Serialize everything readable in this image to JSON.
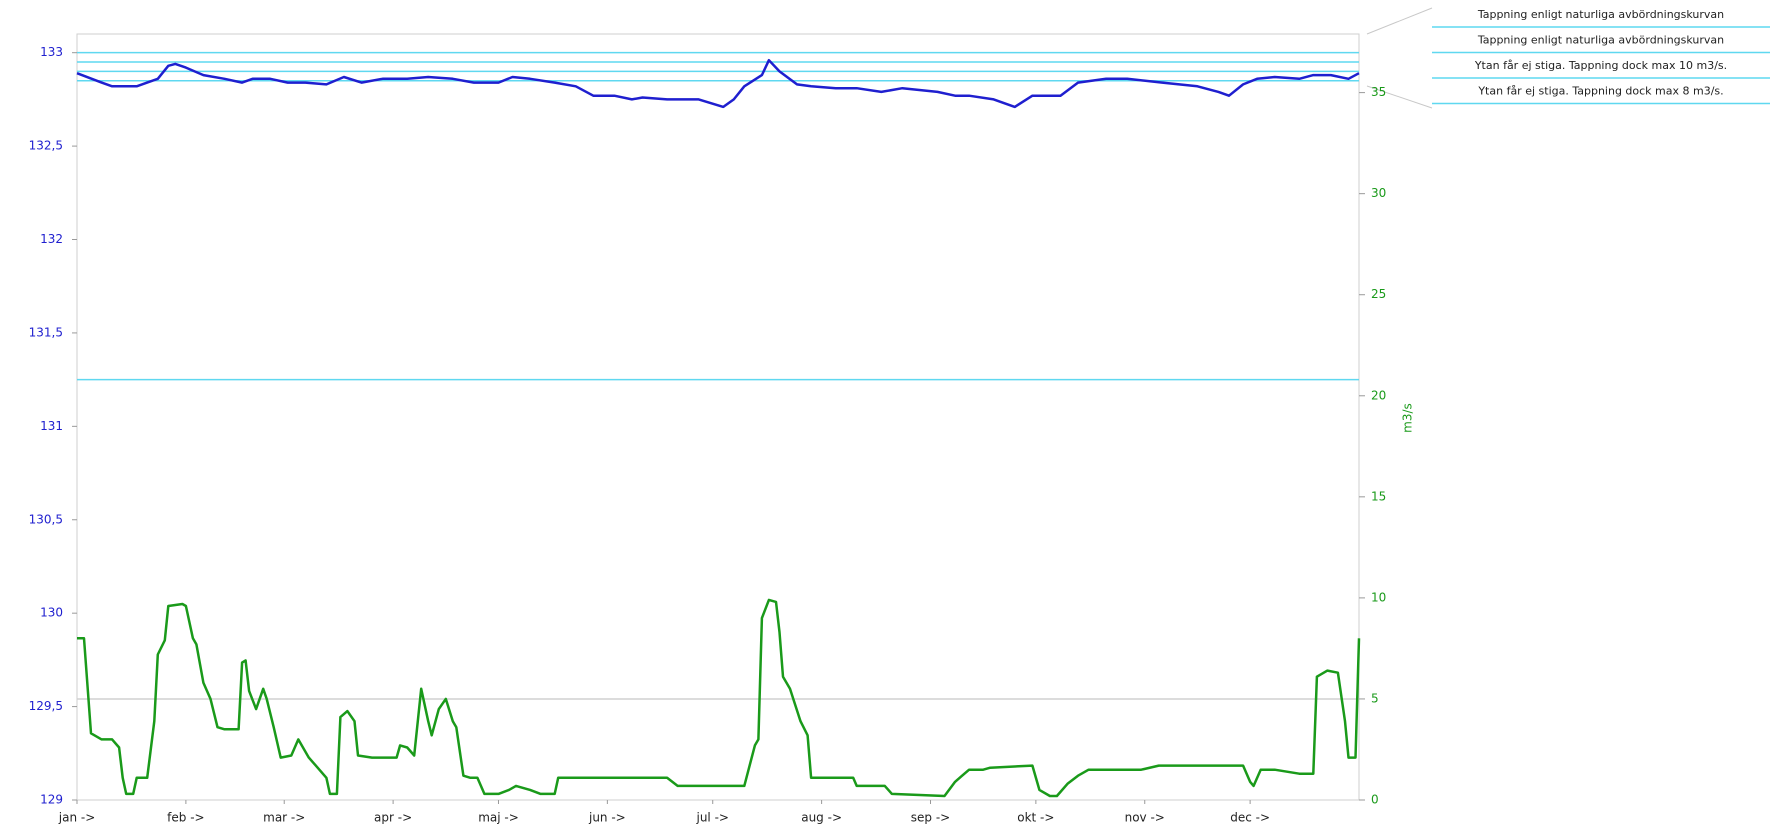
{
  "chart_data": {
    "type": "line",
    "xlim": [
      0,
      365
    ],
    "xticks": [
      {
        "value": 0,
        "label": "jan ->"
      },
      {
        "value": 31,
        "label": "feb ->"
      },
      {
        "value": 59,
        "label": "mar ->"
      },
      {
        "value": 90,
        "label": "apr ->"
      },
      {
        "value": 120,
        "label": "maj ->"
      },
      {
        "value": 151,
        "label": "jun ->"
      },
      {
        "value": 181,
        "label": "jul ->"
      },
      {
        "value": 212,
        "label": "aug ->"
      },
      {
        "value": 243,
        "label": "sep ->"
      },
      {
        "value": 273,
        "label": "okt ->"
      },
      {
        "value": 304,
        "label": "nov ->"
      },
      {
        "value": 334,
        "label": "dec ->"
      }
    ],
    "ylim": [
      129,
      133.1
    ],
    "yticks": [
      129,
      {
        "value": 129.5,
        "label": "129,5"
      },
      130,
      {
        "value": 130.5,
        "label": "130,5"
      },
      131,
      {
        "value": 131.5,
        "label": "131,5"
      },
      132,
      {
        "value": 132.5,
        "label": "132,5"
      },
      133
    ],
    "y2lim": [
      0,
      37.9
    ],
    "y2ticks": [
      0,
      5,
      10,
      15,
      20,
      25,
      30,
      35
    ],
    "y2label": "m3/s",
    "levels": [
      133,
      132.95,
      132.9,
      132.85,
      131.25
    ],
    "level_color": "#5fd8f0",
    "y2_reference": 5,
    "legend": [
      "Tappning enligt naturliga avbördningskurvan",
      "Tappning enligt naturliga avbördningskurvan",
      "Ytan får ej stiga. Tappning dock max 10 m3/s.",
      "Ytan får ej stiga. Tappning dock max 8 m3/s."
    ],
    "series": [
      {
        "color": "#1f1fcf",
        "x": [
          0,
          7,
          10,
          17,
          20,
          23,
          26,
          28,
          31,
          36,
          42,
          47,
          50,
          55,
          60,
          65,
          71,
          76,
          81,
          87,
          94,
          100,
          107,
          113,
          120,
          124,
          129,
          136,
          142,
          147,
          153,
          158,
          161,
          168,
          177,
          184,
          187,
          190,
          195,
          197,
          200,
          205,
          209,
          216,
          222,
          229,
          235,
          245,
          250,
          254,
          261,
          267,
          272,
          280,
          285,
          293,
          299,
          309,
          319,
          325,
          328,
          332,
          336,
          341,
          348,
          352,
          357,
          362,
          365
        ],
        "values": [
          132.89,
          132.84,
          132.82,
          132.82,
          132.84,
          132.86,
          132.93,
          132.94,
          132.92,
          132.88,
          132.86,
          132.84,
          132.86,
          132.86,
          132.84,
          132.84,
          132.83,
          132.87,
          132.84,
          132.86,
          132.86,
          132.87,
          132.86,
          132.84,
          132.84,
          132.87,
          132.86,
          132.84,
          132.82,
          132.77,
          132.77,
          132.75,
          132.76,
          132.75,
          132.75,
          132.71,
          132.75,
          132.82,
          132.88,
          132.96,
          132.9,
          132.83,
          132.82,
          132.81,
          132.81,
          132.79,
          132.81,
          132.79,
          132.77,
          132.77,
          132.75,
          132.71,
          132.77,
          132.77,
          132.84,
          132.86,
          132.86,
          132.84,
          132.82,
          132.79,
          132.77,
          132.83,
          132.86,
          132.87,
          132.86,
          132.88,
          132.88,
          132.86,
          132.89
        ]
      },
      {
        "color": "#1a9a1a",
        "axis": "y2",
        "x": [
          0,
          2,
          4,
          7,
          10,
          12,
          13,
          14,
          16,
          17,
          20,
          22,
          23,
          25,
          26,
          30,
          31,
          33,
          34,
          36,
          38,
          40,
          42,
          46,
          47,
          48,
          49,
          51,
          53,
          54,
          56,
          58,
          61,
          63,
          66,
          68,
          71,
          72,
          74,
          75,
          77,
          79,
          80,
          84,
          91,
          92,
          94,
          96,
          98,
          100,
          101,
          103,
          105,
          107,
          108,
          110,
          112,
          114,
          116,
          120,
          123,
          125,
          129,
          132,
          136,
          137,
          152,
          158,
          168,
          171,
          190,
          193,
          194,
          195,
          197,
          199,
          200,
          201,
          203,
          206,
          208,
          209,
          221,
          222,
          230,
          232,
          247,
          250,
          252,
          254,
          258,
          260,
          272,
          274,
          277,
          279,
          282,
          285,
          288,
          291,
          303,
          308,
          332,
          334,
          335,
          337,
          341,
          348,
          352,
          353,
          356,
          359,
          361,
          362,
          364,
          365
        ],
        "values": [
          8.0,
          8.0,
          3.3,
          3.0,
          3.0,
          2.6,
          1.1,
          0.3,
          0.3,
          1.1,
          1.1,
          3.9,
          7.2,
          7.9,
          9.6,
          9.7,
          9.6,
          8.0,
          7.7,
          5.8,
          5.0,
          3.6,
          3.5,
          3.5,
          6.8,
          6.9,
          5.4,
          4.5,
          5.5,
          5.0,
          3.6,
          2.1,
          2.2,
          3.0,
          2.1,
          1.7,
          1.1,
          0.3,
          0.3,
          4.1,
          4.4,
          3.9,
          2.2,
          2.1,
          2.1,
          2.7,
          2.6,
          2.2,
          5.5,
          3.9,
          3.2,
          4.5,
          5.0,
          3.9,
          3.6,
          1.2,
          1.1,
          1.1,
          0.3,
          0.3,
          0.5,
          0.7,
          0.5,
          0.3,
          0.3,
          1.1,
          1.1,
          1.1,
          1.1,
          0.7,
          0.7,
          2.7,
          3.0,
          9.0,
          9.9,
          9.8,
          8.3,
          6.1,
          5.5,
          3.9,
          3.2,
          1.1,
          1.1,
          0.7,
          0.7,
          0.3,
          0.2,
          0.9,
          1.2,
          1.5,
          1.5,
          1.6,
          1.7,
          0.5,
          0.2,
          0.2,
          0.8,
          1.2,
          1.5,
          1.5,
          1.5,
          1.7,
          1.7,
          0.9,
          0.7,
          1.5,
          1.5,
          1.3,
          1.3,
          6.1,
          6.4,
          6.3,
          3.9,
          2.1,
          2.1,
          8.0
        ]
      }
    ]
  }
}
